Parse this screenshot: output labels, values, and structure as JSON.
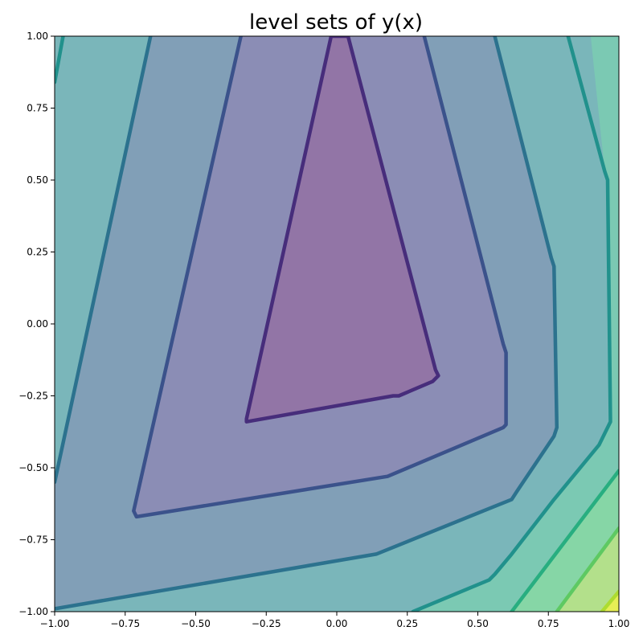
{
  "chart_data": {
    "type": "contour",
    "title": "level sets of y(x)",
    "xlabel": "",
    "ylabel": "",
    "xlim": [
      -1.0,
      1.0
    ],
    "ylim": [
      -1.0,
      1.0
    ],
    "grid": false,
    "xticks": [
      -1.0,
      -0.75,
      -0.5,
      -0.25,
      0.0,
      0.25,
      0.5,
      0.75,
      1.0
    ],
    "xtick_labels": [
      "−1.00",
      "−0.75",
      "−0.50",
      "−0.25",
      "0.00",
      "0.25",
      "0.50",
      "0.75",
      "1.00"
    ],
    "yticks": [
      -1.0,
      -0.75,
      -0.5,
      -0.25,
      0.0,
      0.25,
      0.5,
      0.75,
      1.0
    ],
    "ytick_labels": [
      "−1.00",
      "−0.75",
      "−0.50",
      "−0.25",
      "0.00",
      "0.25",
      "0.50",
      "0.75",
      "1.00"
    ],
    "fill_levels": [
      {
        "color": "#7bc9b3",
        "polygon": [
          [
            -1,
            -1
          ],
          [
            1,
            -1
          ],
          [
            1,
            1
          ],
          [
            -1,
            1
          ]
        ]
      },
      {
        "color": "#7ab6ba",
        "polygon": [
          [
            0.27,
            -1
          ],
          [
            0.54,
            -0.89
          ],
          [
            0.62,
            -0.8
          ],
          [
            0.77,
            -0.61
          ],
          [
            0.93,
            -0.42
          ],
          [
            0.97,
            -0.34
          ],
          [
            0.96,
            0.5
          ],
          [
            0.95,
            0.53
          ],
          [
            0.9,
            1
          ],
          [
            -1,
            1
          ],
          [
            -1,
            -1
          ]
        ]
      },
      {
        "color": "#819fb7",
        "polygon": [
          [
            -1,
            -0.99
          ],
          [
            0.14,
            -0.8
          ],
          [
            0.62,
            -0.61
          ],
          [
            0.64,
            -0.58
          ],
          [
            0.77,
            -0.39
          ],
          [
            0.78,
            -0.36
          ],
          [
            0.77,
            0.2
          ],
          [
            0.76,
            0.23
          ],
          [
            0.56,
            1
          ],
          [
            -0.66,
            1
          ],
          [
            -1,
            -0.55
          ]
        ]
      },
      {
        "color": "#8b8db5",
        "polygon": [
          [
            -0.71,
            -0.67
          ],
          [
            0.18,
            -0.53
          ],
          [
            0.59,
            -0.36
          ],
          [
            0.6,
            -0.35
          ],
          [
            0.6,
            -0.1
          ],
          [
            0.59,
            -0.07
          ],
          [
            0.31,
            1
          ],
          [
            -0.34,
            1
          ],
          [
            -0.72,
            -0.65
          ]
        ]
      },
      {
        "color": "#9275a6",
        "polygon": [
          [
            -0.32,
            -0.34
          ],
          [
            0.2,
            -0.25
          ],
          [
            0.22,
            -0.25
          ],
          [
            0.34,
            -0.2
          ],
          [
            0.36,
            -0.18
          ],
          [
            0.35,
            -0.16
          ],
          [
            0.04,
            1
          ],
          [
            -0.02,
            1
          ],
          [
            -0.32,
            -0.33
          ]
        ]
      }
    ],
    "contours": [
      {
        "color": "#472d7b",
        "closed": true,
        "points": [
          [
            -0.32,
            -0.34
          ],
          [
            0.2,
            -0.25
          ],
          [
            0.22,
            -0.25
          ],
          [
            0.34,
            -0.2
          ],
          [
            0.36,
            -0.18
          ],
          [
            0.35,
            -0.16
          ],
          [
            0.04,
            1
          ],
          [
            -0.02,
            1
          ],
          [
            -0.32,
            -0.33
          ]
        ]
      },
      {
        "color": "#3b528b",
        "closed": false,
        "points": [
          [
            -0.34,
            1
          ],
          [
            -0.72,
            -0.65
          ],
          [
            -0.71,
            -0.67
          ],
          [
            0.18,
            -0.53
          ],
          [
            0.59,
            -0.36
          ],
          [
            0.6,
            -0.35
          ],
          [
            0.6,
            -0.1
          ],
          [
            0.59,
            -0.07
          ],
          [
            0.31,
            1
          ]
        ]
      },
      {
        "color": "#2c728e",
        "closed": false,
        "points": [
          [
            -0.66,
            1
          ],
          [
            -1,
            -0.55
          ]
        ]
      },
      {
        "color": "#2c728e",
        "closed": false,
        "points": [
          [
            -1,
            -0.99
          ],
          [
            0.14,
            -0.8
          ],
          [
            0.62,
            -0.61
          ],
          [
            0.64,
            -0.58
          ],
          [
            0.77,
            -0.39
          ],
          [
            0.78,
            -0.36
          ],
          [
            0.77,
            0.2
          ],
          [
            0.76,
            0.23
          ],
          [
            0.56,
            1
          ]
        ]
      },
      {
        "color": "#21918c",
        "closed": false,
        "points": [
          [
            -1,
            0.84
          ],
          [
            -0.97,
            1
          ]
        ]
      },
      {
        "color": "#21918c",
        "closed": false,
        "points": [
          [
            0.27,
            -1
          ],
          [
            0.54,
            -0.89
          ],
          [
            0.56,
            -0.87
          ],
          [
            0.62,
            -0.8
          ],
          [
            0.77,
            -0.61
          ],
          [
            0.93,
            -0.42
          ],
          [
            0.97,
            -0.34
          ],
          [
            0.96,
            0.5
          ],
          [
            0.95,
            0.53
          ],
          [
            0.82,
            1
          ]
        ]
      },
      {
        "color": "#28ae80",
        "closed": false,
        "points": [
          [
            0.62,
            -1
          ],
          [
            1,
            -0.51
          ]
        ]
      },
      {
        "color": "#5ec962",
        "closed": false,
        "points": [
          [
            0.78,
            -1
          ],
          [
            1,
            -0.71
          ]
        ]
      },
      {
        "color": "#addc30",
        "closed": false,
        "points": [
          [
            0.94,
            -1
          ],
          [
            1,
            -0.93
          ]
        ]
      }
    ],
    "corner_fills": [
      {
        "color": "#86d6a6",
        "polygon": [
          [
            0.62,
            -1
          ],
          [
            1,
            -1
          ],
          [
            1,
            -0.51
          ]
        ]
      },
      {
        "color": "#b3e08b",
        "polygon": [
          [
            0.78,
            -1
          ],
          [
            1,
            -1
          ],
          [
            1,
            -0.71
          ]
        ]
      },
      {
        "color": "#e6ef55",
        "polygon": [
          [
            0.94,
            -1
          ],
          [
            1,
            -1
          ],
          [
            1,
            -0.93
          ]
        ]
      }
    ]
  }
}
